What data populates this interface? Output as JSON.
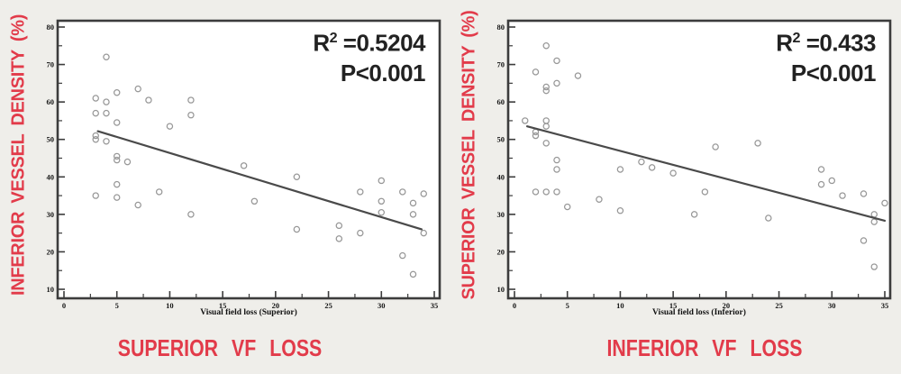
{
  "page": {
    "background": "#efeeea",
    "accent_red": "#e23b4a",
    "text_dark": "#222222"
  },
  "chart_data": [
    {
      "type": "scatter",
      "panel": "left",
      "caption": "SUPERIOR VF LOSS",
      "y_axis_label": "INFERIOR VESSEL DENSITY (%)",
      "x_axis_label": "Visual field loss (Superior)",
      "annotation": {
        "r2_prefix": "R",
        "r2_sup": "2",
        "r2_rest": " =0.5204",
        "p_line": "P<0.001"
      },
      "xlim": [
        0,
        35
      ],
      "ylim": [
        10,
        80
      ],
      "x_ticks": [
        0,
        5,
        10,
        15,
        20,
        25,
        30,
        35
      ],
      "y_ticks": [
        10,
        20,
        30,
        40,
        50,
        60,
        70,
        80
      ],
      "grid": false,
      "legend": "none",
      "points": [
        [
          4,
          72
        ],
        [
          3,
          61
        ],
        [
          4,
          60
        ],
        [
          3,
          57
        ],
        [
          4,
          57
        ],
        [
          5,
          62.5
        ],
        [
          7,
          63.5
        ],
        [
          8,
          60.5
        ],
        [
          5,
          54.5
        ],
        [
          3,
          51
        ],
        [
          3,
          50
        ],
        [
          4,
          49.5
        ],
        [
          10,
          53.5
        ],
        [
          12,
          60.5
        ],
        [
          12,
          56.5
        ],
        [
          5,
          45.5
        ],
        [
          5,
          44.5
        ],
        [
          6,
          44
        ],
        [
          17,
          43
        ],
        [
          22,
          40
        ],
        [
          5,
          38
        ],
        [
          3,
          35
        ],
        [
          5,
          34.5
        ],
        [
          9,
          36
        ],
        [
          7,
          32.5
        ],
        [
          12,
          30
        ],
        [
          18,
          33.5
        ],
        [
          22,
          26
        ],
        [
          26,
          27
        ],
        [
          26,
          23.5
        ],
        [
          28,
          36
        ],
        [
          28,
          25
        ],
        [
          30,
          39
        ],
        [
          30,
          33.5
        ],
        [
          30,
          30.5
        ],
        [
          32,
          36
        ],
        [
          33,
          33
        ],
        [
          33,
          30
        ],
        [
          32,
          19
        ],
        [
          33,
          14
        ],
        [
          34,
          35.5
        ],
        [
          34,
          25
        ]
      ],
      "regression_line": {
        "x1": 3.2,
        "y1": 52.2,
        "x2": 33.8,
        "y2": 26.0
      },
      "colors": {
        "frame": "#3c3c3c",
        "point": "#979797",
        "line": "#4a4a4a",
        "plot_bg": "#ffffff"
      }
    },
    {
      "type": "scatter",
      "panel": "right",
      "caption": "INFERIOR VF LOSS",
      "y_axis_label": "SUPERIOR VESSEL DENSITY (%)",
      "x_axis_label": "Visual field loss (Inferior)",
      "annotation": {
        "r2_prefix": "R",
        "r2_sup": "2",
        "r2_rest": " =0.433",
        "p_line": "P<0.001"
      },
      "xlim": [
        0,
        35
      ],
      "ylim": [
        10,
        80
      ],
      "x_ticks": [
        0,
        5,
        10,
        15,
        20,
        25,
        30,
        35
      ],
      "y_ticks": [
        10,
        20,
        30,
        40,
        50,
        60,
        70,
        80
      ],
      "grid": false,
      "legend": "none",
      "points": [
        [
          3,
          75
        ],
        [
          4,
          71
        ],
        [
          2,
          68
        ],
        [
          6,
          67
        ],
        [
          4,
          65
        ],
        [
          3,
          64
        ],
        [
          3,
          63
        ],
        [
          1,
          55
        ],
        [
          3,
          55
        ],
        [
          3,
          53.5
        ],
        [
          2,
          52
        ],
        [
          2,
          51
        ],
        [
          3,
          49
        ],
        [
          4,
          44.5
        ],
        [
          4,
          42
        ],
        [
          10,
          42
        ],
        [
          12,
          44
        ],
        [
          13,
          42.5
        ],
        [
          15,
          41
        ],
        [
          19,
          48
        ],
        [
          23,
          49
        ],
        [
          2,
          36
        ],
        [
          3,
          36
        ],
        [
          4,
          36
        ],
        [
          8,
          34
        ],
        [
          5,
          32
        ],
        [
          10,
          31
        ],
        [
          17,
          30
        ],
        [
          18,
          36
        ],
        [
          24,
          29
        ],
        [
          29,
          42
        ],
        [
          30,
          39
        ],
        [
          29,
          38
        ],
        [
          31,
          35
        ],
        [
          33,
          35.5
        ],
        [
          35,
          33
        ],
        [
          34,
          30
        ],
        [
          34,
          28
        ],
        [
          33,
          23
        ],
        [
          34,
          16
        ]
      ],
      "regression_line": {
        "x1": 1.2,
        "y1": 53.5,
        "x2": 35,
        "y2": 28.3
      },
      "colors": {
        "frame": "#3c3c3c",
        "point": "#979797",
        "line": "#4a4a4a",
        "plot_bg": "#ffffff"
      }
    }
  ]
}
